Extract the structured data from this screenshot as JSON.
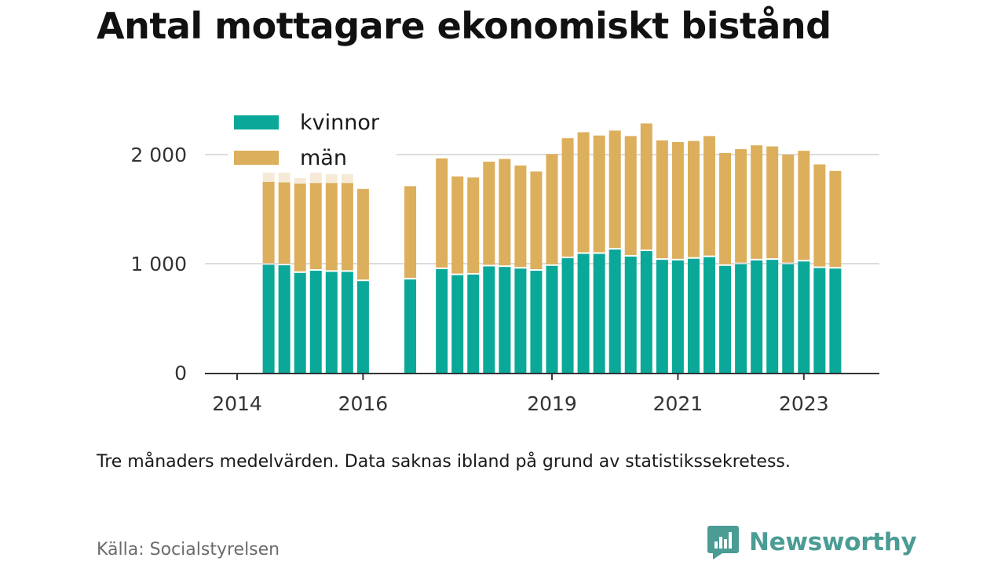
{
  "title": "Antal mottagare ekonomiskt bistånd",
  "note": "Tre månaders medelvärden. Data saknas ibland på grund av statistikssekretess.",
  "source": "Källa: Socialstyrelsen",
  "brand": {
    "name": "Newsworthy",
    "icon": "chat-bubble-bar-chart-icon",
    "color": "#4a9c94"
  },
  "colors": {
    "kvinnor": "#0aa898",
    "man": "#dcaf5c",
    "man_faded": "#f6ead7"
  },
  "chart_data": {
    "type": "bar",
    "stacked": true,
    "title": "Antal mottagare ekonomiskt bistånd",
    "xlabel": "",
    "ylabel": "",
    "ylim": [
      0,
      2500
    ],
    "yticks": [
      0,
      1000,
      2000
    ],
    "ytick_labels": [
      "0",
      "1 000",
      "2 000"
    ],
    "xticks": [
      2014,
      2016,
      2019,
      2021,
      2023
    ],
    "xtick_labels": [
      "2014",
      "2016",
      "2019",
      "2021",
      "2023"
    ],
    "xlim": [
      2013.75,
      2024.5
    ],
    "grid": true,
    "legend": "top-left",
    "x": [
      2014.5,
      2014.75,
      2015.0,
      2015.25,
      2015.5,
      2015.75,
      2016.0,
      2016.75,
      2017.25,
      2017.5,
      2017.75,
      2018.0,
      2018.25,
      2018.5,
      2018.75,
      2019.0,
      2019.25,
      2019.5,
      2019.75,
      2020.0,
      2020.25,
      2020.5,
      2020.75,
      2021.0,
      2021.25,
      2021.5,
      2021.75,
      2022.0,
      2022.25,
      2022.5,
      2022.75,
      2023.0,
      2023.25,
      2023.5
    ],
    "series": [
      {
        "name": "kvinnor",
        "color": "#0aa898",
        "values": [
          990,
          985,
          915,
          935,
          925,
          925,
          840,
          855,
          950,
          895,
          900,
          975,
          970,
          955,
          935,
          980,
          1050,
          1090,
          1090,
          1130,
          1065,
          1115,
          1035,
          1030,
          1045,
          1060,
          980,
          995,
          1030,
          1035,
          995,
          1020,
          960,
          955
        ]
      },
      {
        "name": "män",
        "color": "#dcaf5c",
        "values": [
          760,
          760,
          820,
          805,
          815,
          815,
          845,
          855,
          1015,
          905,
          890,
          960,
          990,
          945,
          910,
          1025,
          1100,
          1115,
          1085,
          1090,
          1105,
          1170,
          1095,
          1085,
          1080,
          1110,
          1035,
          1055,
          1055,
          1040,
          1005,
          1015,
          950,
          895
        ]
      }
    ],
    "faded_extension": {
      "series": "män",
      "color": "#f6ead7",
      "x": [
        2014.5,
        2014.75,
        2015.0,
        2015.25,
        2015.5,
        2015.75
      ],
      "values": [
        140,
        140,
        50,
        110,
        80,
        80
      ]
    }
  },
  "legend": {
    "items": [
      {
        "label": "kvinnor",
        "color": "#0aa898"
      },
      {
        "label": "män",
        "color": "#dcaf5c"
      }
    ]
  }
}
